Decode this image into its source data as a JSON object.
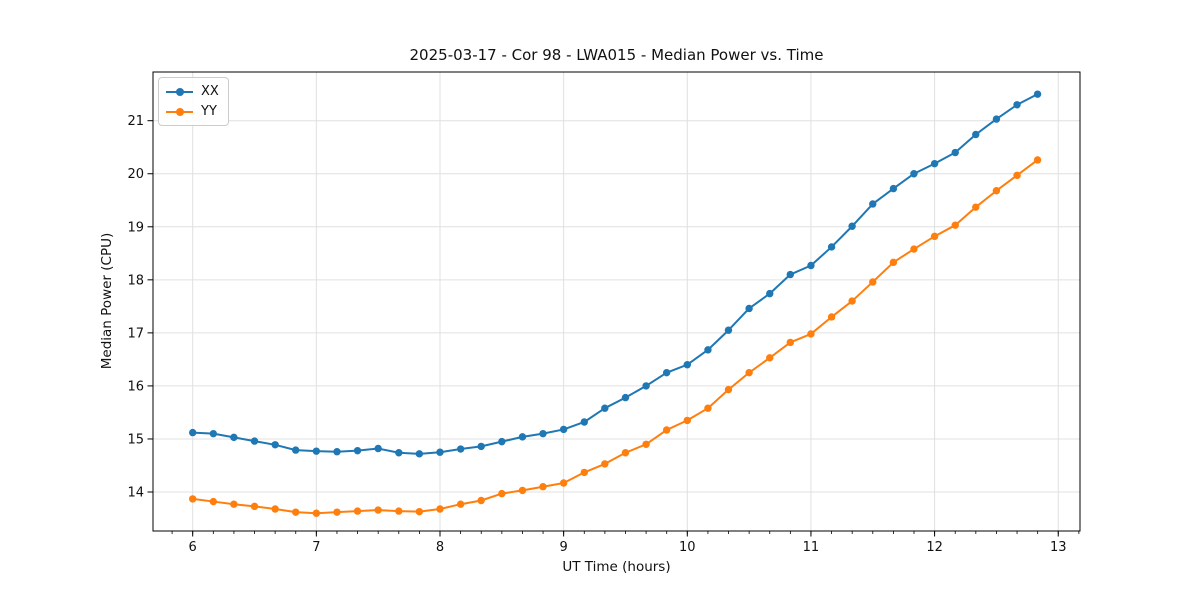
{
  "chart_data": {
    "type": "line",
    "title": "2025-03-17 - Cor 98 - LWA015 - Median Power vs. Time",
    "xlabel": "UT Time (hours)",
    "ylabel": "Median Power (CPU)",
    "xlim": [
      5.679,
      13.176
    ],
    "ylim": [
      13.265,
      21.918
    ],
    "x_ticks": [
      6,
      7,
      8,
      9,
      10,
      11,
      12,
      13
    ],
    "y_ticks": [
      14,
      15,
      16,
      17,
      18,
      19,
      20,
      21
    ],
    "x_minor_step": 0.16667,
    "grid": true,
    "grid_color": "#e0e0e0",
    "legend_position": "upper-left",
    "x": [
      6.0,
      6.167,
      6.333,
      6.5,
      6.667,
      6.833,
      7.0,
      7.167,
      7.333,
      7.5,
      7.667,
      7.833,
      8.0,
      8.167,
      8.333,
      8.5,
      8.667,
      8.833,
      9.0,
      9.167,
      9.333,
      9.5,
      9.667,
      9.833,
      10.0,
      10.167,
      10.333,
      10.5,
      10.667,
      10.833,
      11.0,
      11.167,
      11.333,
      11.5,
      11.667,
      11.833,
      12.0,
      12.167,
      12.333,
      12.5,
      12.667,
      12.833
    ],
    "series": [
      {
        "name": "XX",
        "color": "#1f77b4",
        "values": [
          15.12,
          15.1,
          15.03,
          14.96,
          14.89,
          14.79,
          14.77,
          14.76,
          14.78,
          14.82,
          14.74,
          14.72,
          14.75,
          14.81,
          14.86,
          14.95,
          15.04,
          15.1,
          15.18,
          15.32,
          15.58,
          15.78,
          16.0,
          16.25,
          16.4,
          16.68,
          17.05,
          17.46,
          17.74,
          18.1,
          18.27,
          18.62,
          19.01,
          19.43,
          19.72,
          20.0,
          20.19,
          20.4,
          20.74,
          21.03,
          21.3,
          21.5
        ]
      },
      {
        "name": "YY",
        "color": "#ff7f0e",
        "values": [
          13.87,
          13.82,
          13.77,
          13.73,
          13.68,
          13.62,
          13.6,
          13.62,
          13.64,
          13.66,
          13.64,
          13.63,
          13.68,
          13.77,
          13.84,
          13.97,
          14.03,
          14.1,
          14.17,
          14.37,
          14.53,
          14.74,
          14.9,
          15.17,
          15.35,
          15.58,
          15.93,
          16.25,
          16.53,
          16.82,
          16.98,
          17.3,
          17.6,
          17.96,
          18.33,
          18.58,
          18.82,
          19.03,
          19.37,
          19.68,
          19.97,
          20.26
        ]
      }
    ]
  }
}
